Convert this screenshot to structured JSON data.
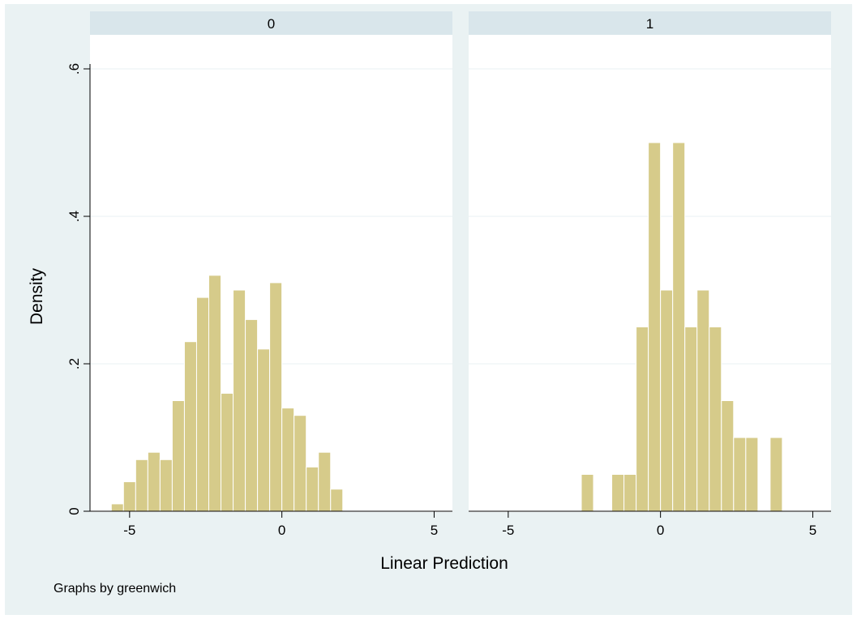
{
  "chart_data": {
    "type": "bar",
    "ylabel": "Density",
    "xlabel": "Linear Prediction",
    "note": "Graphs by greenwich",
    "ylim": [
      0,
      0.6
    ],
    "yticks": [
      0,
      0.2,
      0.4,
      0.6
    ],
    "ytick_labels": [
      "0",
      ".2",
      ".4",
      ".6"
    ],
    "xlim": [
      -6.3,
      5.6
    ],
    "xticks": [
      -5,
      0,
      5
    ],
    "xtick_labels": [
      "-5",
      "0",
      "5"
    ],
    "grid": true,
    "bin_width": 0.4,
    "panels": [
      {
        "label": "0",
        "bins": [
          {
            "x": -5.6,
            "density": 0.01
          },
          {
            "x": -5.2,
            "density": 0.04
          },
          {
            "x": -4.8,
            "density": 0.07
          },
          {
            "x": -4.4,
            "density": 0.08
          },
          {
            "x": -4.0,
            "density": 0.07
          },
          {
            "x": -3.6,
            "density": 0.15
          },
          {
            "x": -3.2,
            "density": 0.23
          },
          {
            "x": -2.8,
            "density": 0.29
          },
          {
            "x": -2.4,
            "density": 0.32
          },
          {
            "x": -2.0,
            "density": 0.16
          },
          {
            "x": -1.6,
            "density": 0.3
          },
          {
            "x": -1.2,
            "density": 0.26
          },
          {
            "x": -0.8,
            "density": 0.22
          },
          {
            "x": -0.4,
            "density": 0.31
          },
          {
            "x": 0.0,
            "density": 0.14
          },
          {
            "x": 0.4,
            "density": 0.13
          },
          {
            "x": 0.8,
            "density": 0.06
          },
          {
            "x": 1.2,
            "density": 0.08
          },
          {
            "x": 1.6,
            "density": 0.03
          }
        ]
      },
      {
        "label": "1",
        "bins": [
          {
            "x": -2.6,
            "density": 0.05
          },
          {
            "x": -1.6,
            "density": 0.05
          },
          {
            "x": -1.2,
            "density": 0.05
          },
          {
            "x": -0.8,
            "density": 0.25
          },
          {
            "x": -0.4,
            "density": 0.5
          },
          {
            "x": 0.0,
            "density": 0.3
          },
          {
            "x": 0.4,
            "density": 0.5
          },
          {
            "x": 0.8,
            "density": 0.25
          },
          {
            "x": 1.2,
            "density": 0.3
          },
          {
            "x": 1.6,
            "density": 0.25
          },
          {
            "x": 2.0,
            "density": 0.15
          },
          {
            "x": 2.4,
            "density": 0.1
          },
          {
            "x": 2.8,
            "density": 0.1
          },
          {
            "x": 3.6,
            "density": 0.1
          }
        ]
      }
    ]
  }
}
